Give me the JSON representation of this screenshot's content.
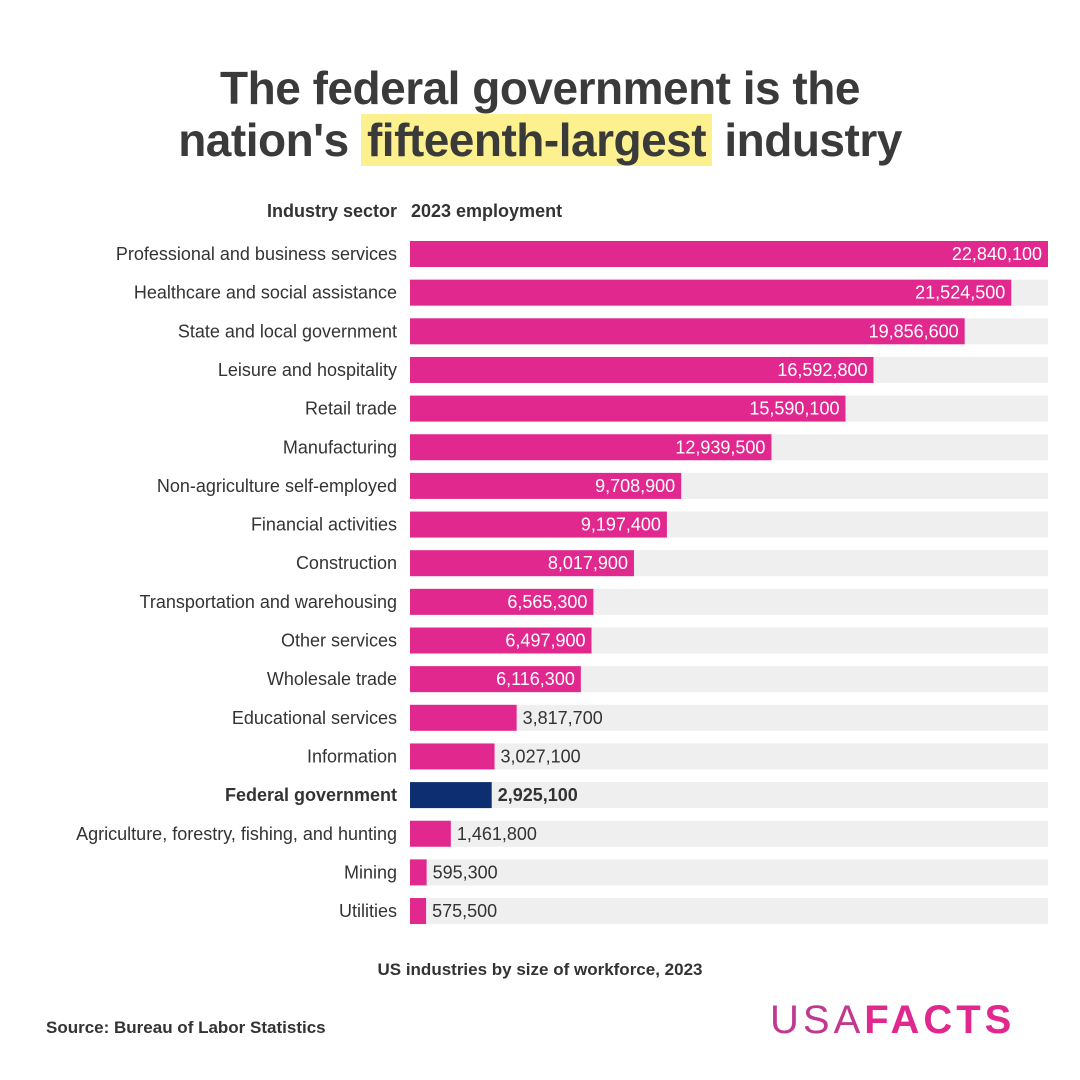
{
  "title": {
    "line1": "The federal government is the",
    "line2_pre": "nation's",
    "line2_highlight": "fifteenth-largest",
    "line2_post": "industry"
  },
  "colors": {
    "bar": "#e0288f",
    "highlight_bar": "#0d2f72",
    "track": "#efefef",
    "title_highlight": "#fdf08f"
  },
  "chart_data": {
    "type": "bar",
    "orientation": "horizontal",
    "category_header": "Industry sector",
    "value_header": "2023 employment",
    "categories": [
      "Professional and business services",
      "Healthcare and social assistance",
      "State and local government",
      "Leisure and hospitality",
      "Retail trade",
      "Manufacturing",
      "Non-agriculture self-employed",
      "Financial activities",
      "Construction",
      "Transportation and warehousing",
      "Other services",
      "Wholesale trade",
      "Educational services",
      "Information",
      "Federal government",
      "Agriculture, forestry, fishing, and hunting",
      "Mining",
      "Utilities"
    ],
    "values": [
      22840100,
      21524500,
      19856600,
      16592800,
      15590100,
      12939500,
      9708900,
      9197400,
      8017900,
      6565300,
      6497900,
      6116300,
      3817700,
      3027100,
      2925100,
      1461800,
      595300,
      575500
    ],
    "labels": [
      "22,840,100",
      "21,524,500",
      "19,856,600",
      "16,592,800",
      "15,590,100",
      "12,939,500",
      "9,708,900",
      "9,197,400",
      "8,017,900",
      "6,565,300",
      "6,497,900",
      "6,116,300",
      "3,817,700",
      "3,027,100",
      "2,925,100",
      "1,461,800",
      "595,300",
      "575,500"
    ],
    "highlighted": "Federal government",
    "xlim": [
      0,
      22840100
    ],
    "grid": false,
    "legend": "none"
  },
  "caption": "US industries by size of workforce, 2023",
  "source": "Source: Bureau of Labor Statistics",
  "logo": {
    "usa": "USA",
    "facts": "FACTS"
  }
}
